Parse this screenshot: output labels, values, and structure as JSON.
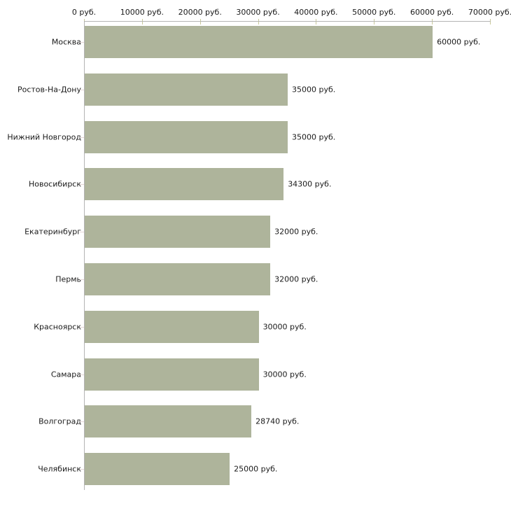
{
  "chart_data": {
    "type": "bar",
    "orientation": "horizontal",
    "title": "",
    "xlabel": "",
    "ylabel": "",
    "unit": "руб.",
    "categories": [
      "Москва",
      "Ростов-На-Дону",
      "Нижний Новгород",
      "Новосибирск",
      "Екатеринбург",
      "Пермь",
      "Красноярск",
      "Самара",
      "Волгоград",
      "Челябинск"
    ],
    "values": [
      60000,
      35000,
      35000,
      34300,
      32000,
      32000,
      30000,
      30000,
      28740,
      25000
    ],
    "value_labels": [
      "60000 руб.",
      "35000 руб.",
      "35000 руб.",
      "34300 руб.",
      "32000 руб.",
      "32000 руб.",
      "30000 руб.",
      "30000 руб.",
      "28740 руб.",
      "25000 руб."
    ],
    "x_ticks": [
      0,
      10000,
      20000,
      30000,
      40000,
      50000,
      60000,
      70000
    ],
    "x_tick_labels": [
      "0 руб.",
      "10000 руб.",
      "20000 руб.",
      "30000 руб.",
      "40000 руб.",
      "50000 руб.",
      "60000 руб.",
      "70000 руб."
    ],
    "xlim": [
      0,
      70000
    ],
    "grid": false,
    "legend": false,
    "tick_label_position": "top",
    "colors": {
      "bar": "#aeb49b",
      "axis_line": "#b3b3b3",
      "x_tick": "#c9c99b",
      "y_tick": "#e5d7d7",
      "text": "#1a1a1a",
      "background": "#ffffff"
    }
  }
}
